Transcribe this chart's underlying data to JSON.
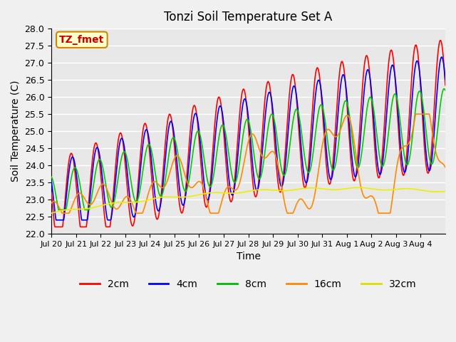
{
  "title": "Tonzi Soil Temperature Set A",
  "xlabel": "Time",
  "ylabel": "Soil Temperature (C)",
  "ylim": [
    22.0,
    28.0
  ],
  "yticks": [
    22.0,
    22.5,
    23.0,
    23.5,
    24.0,
    24.5,
    25.0,
    25.5,
    26.0,
    26.5,
    27.0,
    27.5,
    28.0
  ],
  "xtick_labels": [
    "Jul 20",
    "Jul 21",
    "Jul 22",
    "Jul 23",
    "Jul 24",
    "Jul 25",
    "Jul 26",
    "Jul 27",
    "Jul 28",
    "Jul 29",
    "Jul 30",
    "Jul 31",
    "Aug 1",
    "Aug 2",
    "Aug 3",
    "Aug 4"
  ],
  "legend_labels": [
    "2cm",
    "4cm",
    "8cm",
    "16cm",
    "32cm"
  ],
  "legend_colors": [
    "#ff0000",
    "#0000ff",
    "#00bb00",
    "#ff8800",
    "#dddd00"
  ],
  "line_colors": [
    "#ff0000",
    "#0000ff",
    "#00cc00",
    "#ff8800",
    "#eeee00"
  ],
  "annotation_text": "TZ_fmet",
  "background_color": "#e8e8e8",
  "grid_color": "#ffffff",
  "fig_bg_color": "#f0f0f0",
  "n_days": 16,
  "pts_per_day": 48
}
